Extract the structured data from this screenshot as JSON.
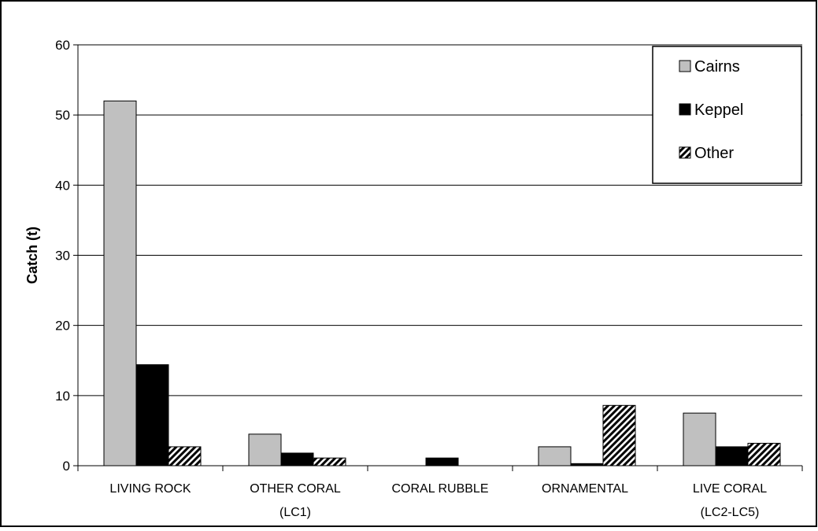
{
  "chart_data": {
    "type": "bar",
    "title": "",
    "xlabel": "",
    "ylabel": "Catch (t)",
    "ylim": [
      0,
      60
    ],
    "yticks": [
      0,
      10,
      20,
      30,
      40,
      50,
      60
    ],
    "grid": true,
    "legend_position": "top-right",
    "categories": [
      [
        "LIVING ROCK"
      ],
      [
        "OTHER CORAL",
        "(LC1)"
      ],
      [
        "CORAL RUBBLE"
      ],
      [
        "ORNAMENTAL"
      ],
      [
        "LIVE CORAL",
        "(LC2-LC5)"
      ]
    ],
    "series": [
      {
        "name": "Cairns",
        "color": "#c0c0c0",
        "pattern": "solid",
        "values": [
          52,
          4.5,
          0,
          2.7,
          7.5
        ]
      },
      {
        "name": "Keppel",
        "color": "#000000",
        "pattern": "solid",
        "values": [
          14.4,
          1.8,
          1.1,
          0.3,
          2.7
        ]
      },
      {
        "name": "Other",
        "color": "#000000",
        "pattern": "diagonal-hatch",
        "values": [
          2.7,
          1.1,
          0,
          8.6,
          3.2
        ]
      }
    ]
  }
}
